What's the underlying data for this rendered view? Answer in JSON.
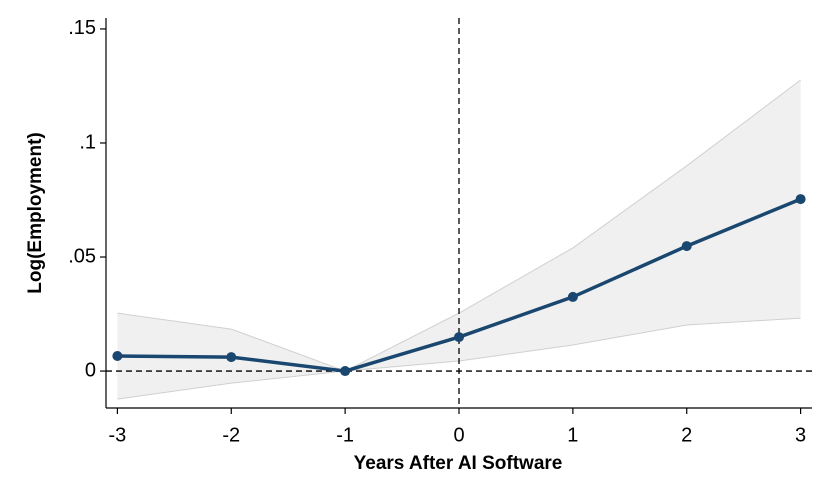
{
  "chart_data": {
    "type": "line",
    "x_label": "Years After AI Software",
    "y_label": "Log(Employment)",
    "x": [
      -3,
      -2,
      -1,
      0,
      1,
      2,
      3
    ],
    "values": [
      0.0066,
      0.0061,
      0,
      0.0149,
      0.0325,
      0.0548,
      0.0754
    ],
    "ci_upper": [
      0.0254,
      0.0184,
      0,
      0.0254,
      0.054,
      0.09,
      0.1276
    ],
    "ci_lower": [
      -0.0123,
      -0.0053,
      0,
      0.0044,
      0.0114,
      0.0202,
      0.0232
    ],
    "color": "#1a476f",
    "band_color": "#f0f0f0",
    "xlim": [
      -3.1,
      3.1
    ],
    "ylim": [
      -0.0162,
      0.1548
    ],
    "xticks": [
      -3,
      -2,
      -1,
      0,
      1,
      2,
      3
    ],
    "yticks": [
      0,
      {
        "value": 0.05,
        "label": ".05"
      },
      {
        "value": 0.1,
        "label": ".1"
      },
      {
        "value": 0.15,
        "label": ".15"
      }
    ],
    "xline": 0,
    "yline": 0
  }
}
